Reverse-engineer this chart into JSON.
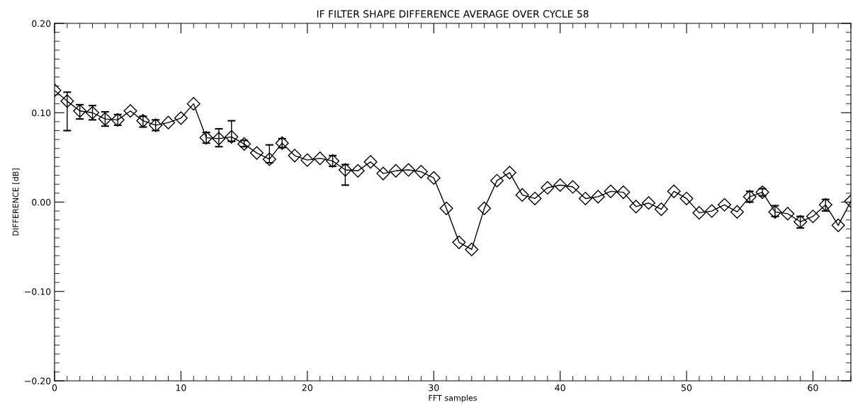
{
  "chart_data": {
    "type": "line",
    "title": "IF FILTER SHAPE DIFFERENCE AVERAGE OVER CYCLE 58",
    "xlabel": "FFT samples",
    "ylabel": "DIFFERENCE [dB]",
    "x": [
      0,
      1,
      2,
      3,
      4,
      5,
      6,
      7,
      8,
      9,
      10,
      11,
      12,
      13,
      14,
      15,
      16,
      17,
      18,
      19,
      20,
      21,
      22,
      23,
      24,
      25,
      26,
      27,
      28,
      29,
      30,
      31,
      32,
      33,
      34,
      35,
      36,
      37,
      38,
      39,
      40,
      41,
      42,
      43,
      44,
      45,
      46,
      47,
      48,
      49,
      50,
      51,
      52,
      53,
      54,
      55,
      56,
      57,
      58,
      59,
      60,
      61,
      62,
      63
    ],
    "series": [
      {
        "color": "#000000",
        "values": [
          0.125,
          0.113,
          0.102,
          0.1,
          0.093,
          0.092,
          0.102,
          0.091,
          0.086,
          0.089,
          0.094,
          0.11,
          0.072,
          0.071,
          0.073,
          0.065,
          0.055,
          0.048,
          0.066,
          0.052,
          0.047,
          0.049,
          0.046,
          0.036,
          0.035,
          0.045,
          0.032,
          0.035,
          0.036,
          0.034,
          0.027,
          -0.007,
          -0.045,
          -0.053,
          -0.007,
          0.024,
          0.033,
          0.008,
          0.004,
          0.016,
          0.019,
          0.017,
          0.004,
          0.006,
          0.012,
          0.011,
          -0.005,
          -0.001,
          -0.008,
          0.012,
          0.004,
          -0.012,
          -0.01,
          -0.003,
          -0.011,
          0.006,
          0.011,
          -0.011,
          -0.013,
          -0.022,
          -0.016,
          -0.003,
          -0.026,
          0.001
        ],
        "errors": [
          null,
          [
            0.08,
            0.123
          ],
          [
            0.093,
            0.109
          ],
          [
            0.092,
            0.108
          ],
          [
            0.085,
            0.101
          ],
          [
            0.086,
            0.098
          ],
          null,
          [
            0.084,
            0.096
          ],
          [
            0.08,
            0.092
          ],
          null,
          null,
          null,
          [
            0.066,
            0.078
          ],
          [
            0.062,
            0.082
          ],
          [
            0.068,
            0.091
          ],
          [
            0.062,
            0.069
          ],
          null,
          [
            0.044,
            0.064
          ],
          [
            0.061,
            0.071
          ],
          null,
          null,
          null,
          [
            0.04,
            0.052
          ],
          [
            0.019,
            0.042
          ],
          null,
          null,
          null,
          null,
          null,
          null,
          null,
          null,
          null,
          null,
          null,
          null,
          null,
          null,
          null,
          null,
          null,
          null,
          null,
          null,
          null,
          null,
          null,
          null,
          null,
          null,
          null,
          null,
          null,
          null,
          null,
          [
            0.0,
            0.012
          ],
          [
            0.007,
            0.015
          ],
          [
            -0.016,
            -0.004
          ],
          null,
          [
            -0.029,
            -0.016
          ],
          null,
          [
            -0.01,
            0.003
          ],
          null,
          null
        ]
      }
    ],
    "xlim": [
      0,
      63
    ],
    "xticks": [
      0,
      10,
      20,
      30,
      40,
      50,
      60
    ],
    "ylim": [
      -0.2,
      0.2
    ],
    "yticks": [
      {
        "value": -0.2,
        "label": "−0.20"
      },
      {
        "value": -0.1,
        "label": "−0.10"
      },
      {
        "value": 0,
        "label": "0.00"
      },
      {
        "value": 0.1,
        "label": "0.10"
      },
      {
        "value": 0.2,
        "label": "0.20"
      }
    ],
    "marker": "diamond",
    "line_style": "solid",
    "grid": false,
    "legend": false
  }
}
